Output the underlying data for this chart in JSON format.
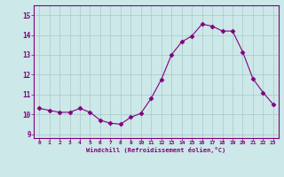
{
  "x": [
    0,
    1,
    2,
    3,
    4,
    5,
    6,
    7,
    8,
    9,
    10,
    11,
    12,
    13,
    14,
    15,
    16,
    17,
    18,
    19,
    20,
    21,
    22,
    23
  ],
  "y": [
    10.3,
    10.2,
    10.1,
    10.1,
    10.3,
    10.1,
    9.7,
    9.55,
    9.5,
    9.85,
    10.05,
    10.8,
    11.75,
    13.0,
    13.65,
    13.95,
    14.55,
    14.45,
    14.2,
    14.2,
    13.15,
    11.8,
    11.1,
    10.5
  ],
  "line_color": "#800080",
  "marker": "D",
  "marker_size": 2.5,
  "bg_color": "#cce8e8",
  "grid_color": "#aac8c8",
  "xlabel": "Windchill (Refroidissement éolien,°C)",
  "xlabel_color": "#800080",
  "tick_color": "#800080",
  "ylim": [
    8.8,
    15.5
  ],
  "xlim": [
    -0.5,
    23.5
  ],
  "yticks": [
    9,
    10,
    11,
    12,
    13,
    14,
    15
  ],
  "xticks": [
    0,
    1,
    2,
    3,
    4,
    5,
    6,
    7,
    8,
    9,
    10,
    11,
    12,
    13,
    14,
    15,
    16,
    17,
    18,
    19,
    20,
    21,
    22,
    23
  ],
  "spine_color": "#800080",
  "title_visible": false
}
